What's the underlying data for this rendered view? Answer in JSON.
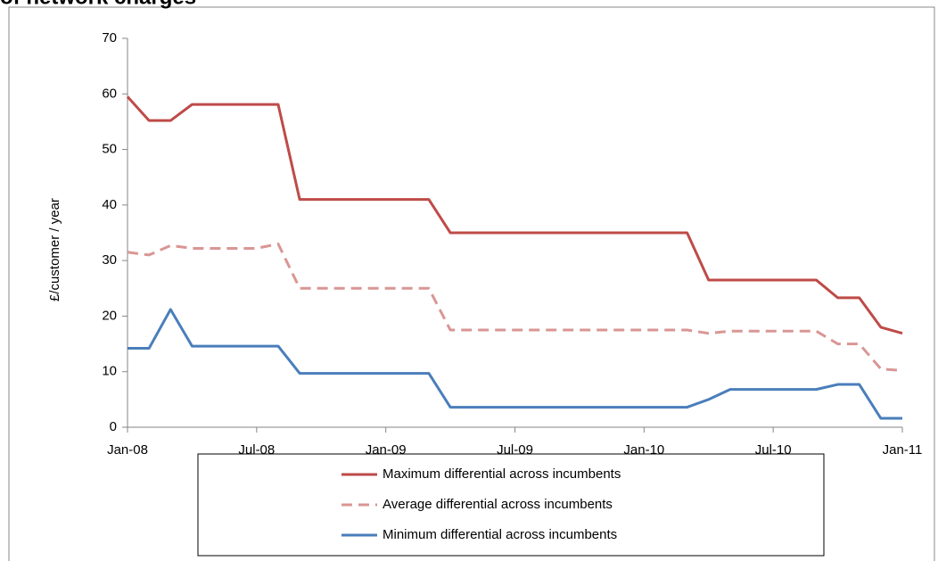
{
  "chart_data": {
    "type": "line",
    "title": "of network charges",
    "y_label": "£/customer / year",
    "x": [
      "2008-01",
      "2008-02",
      "2008-03",
      "2008-04",
      "2008-05",
      "2008-06",
      "2008-07",
      "2008-08",
      "2008-09",
      "2008-10",
      "2008-11",
      "2008-12",
      "2009-01",
      "2009-02",
      "2009-03",
      "2009-04",
      "2009-05",
      "2009-06",
      "2009-07",
      "2009-08",
      "2009-09",
      "2009-10",
      "2009-11",
      "2009-12",
      "2010-01",
      "2010-02",
      "2010-03",
      "2010-04",
      "2010-05",
      "2010-06",
      "2010-07",
      "2010-08",
      "2010-09",
      "2010-10",
      "2010-11",
      "2010-12",
      "2011-01"
    ],
    "xlim": [
      "2008-01",
      "2011-01"
    ],
    "xticks": [
      {
        "value": "2008-01",
        "label": "Jan-08"
      },
      {
        "value": "2008-07",
        "label": "Jul-08"
      },
      {
        "value": "2009-01",
        "label": "Jan-09"
      },
      {
        "value": "2009-07",
        "label": "Jul-09"
      },
      {
        "value": "2010-01",
        "label": "Jan-10"
      },
      {
        "value": "2010-07",
        "label": "Jul-10"
      },
      {
        "value": "2011-01",
        "label": "Jan-11"
      }
    ],
    "ylim": [
      0,
      70
    ],
    "yticks": [
      0,
      10,
      20,
      30,
      40,
      50,
      60,
      70
    ],
    "grid": false,
    "series": [
      {
        "name": "Maximum differential across incumbents",
        "color": "#be4b48",
        "dashed": false,
        "values": [
          59.5,
          55.2,
          55.2,
          58.1,
          58.1,
          58.1,
          58.1,
          58.1,
          41,
          41,
          41,
          41,
          41,
          41,
          41,
          35,
          35,
          35,
          35,
          35,
          35,
          35,
          35,
          35,
          35,
          35,
          35,
          26.5,
          26.5,
          26.5,
          26.5,
          26.5,
          26.5,
          23.3,
          23.3,
          18,
          16.9
        ]
      },
      {
        "name": "Average differential across incumbents",
        "color": "#d99694",
        "dashed": true,
        "values": [
          31.5,
          31,
          32.7,
          32.2,
          32.2,
          32.2,
          32.2,
          33,
          25,
          25,
          25,
          25,
          25,
          25,
          25,
          17.5,
          17.5,
          17.5,
          17.5,
          17.5,
          17.5,
          17.5,
          17.5,
          17.5,
          17.5,
          17.5,
          17.5,
          16.9,
          17.3,
          17.3,
          17.3,
          17.3,
          17.3,
          15,
          15,
          10.5,
          10.2
        ]
      },
      {
        "name": "Minimum differential across incumbents",
        "color": "#4a7ebb",
        "dashed": false,
        "values": [
          14.2,
          14.2,
          21.2,
          14.6,
          14.6,
          14.6,
          14.6,
          14.6,
          9.7,
          9.7,
          9.7,
          9.7,
          9.7,
          9.7,
          9.7,
          3.6,
          3.6,
          3.6,
          3.6,
          3.6,
          3.6,
          3.6,
          3.6,
          3.6,
          3.6,
          3.6,
          3.6,
          5,
          6.8,
          6.8,
          6.8,
          6.8,
          6.8,
          7.7,
          7.7,
          1.6,
          1.6
        ]
      }
    ]
  }
}
